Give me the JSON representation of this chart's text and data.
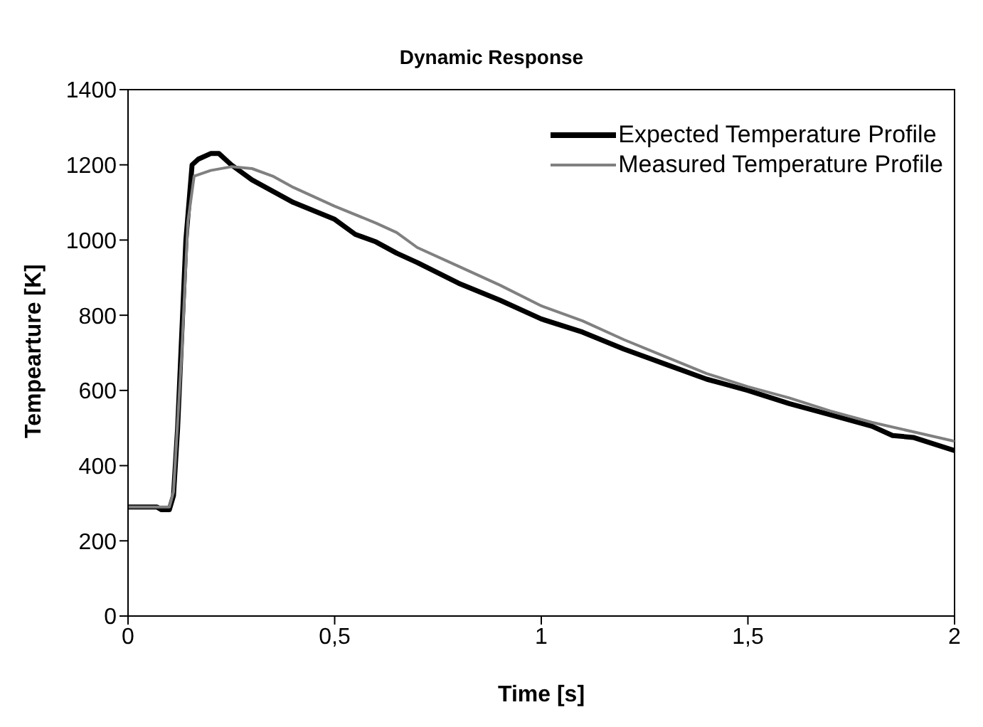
{
  "chart_data": {
    "type": "line",
    "title": "Dynamic Response",
    "xlabel": "Time [s]",
    "ylabel": "Tempearture [K]",
    "xlim": [
      0,
      2
    ],
    "xticks": [
      0,
      {
        "value": 0.5,
        "label": "0,5"
      },
      1,
      {
        "value": 1.5,
        "label": "1,5"
      },
      2
    ],
    "ylim": [
      0,
      1400
    ],
    "yticks": [
      0,
      200,
      400,
      600,
      800,
      1000,
      1200,
      1400
    ],
    "grid": false,
    "legend": "top right",
    "marker": "none",
    "line_style": "solid",
    "series": [
      {
        "name": "Expected Temperature Profile",
        "color": "#000000",
        "x": [
          0,
          0.07,
          0.08,
          0.1,
          0.11,
          0.12,
          0.14,
          0.155,
          0.17,
          0.2,
          0.22,
          0.25,
          0.3,
          0.4,
          0.5,
          0.55,
          0.6,
          0.65,
          0.7,
          0.8,
          0.9,
          1.0,
          1.1,
          1.2,
          1.3,
          1.4,
          1.5,
          1.6,
          1.7,
          1.8,
          1.85,
          1.9,
          2.0
        ],
        "values": [
          290,
          290,
          283,
          283,
          320,
          500,
          1000,
          1200,
          1215,
          1230,
          1230,
          1200,
          1160,
          1100,
          1055,
          1015,
          995,
          965,
          940,
          885,
          840,
          790,
          755,
          710,
          670,
          630,
          600,
          565,
          535,
          505,
          480,
          475,
          440
        ]
      },
      {
        "name": "Measured Temperature Profile",
        "color": "#808080",
        "x": [
          0,
          0.09,
          0.1,
          0.11,
          0.13,
          0.145,
          0.16,
          0.2,
          0.25,
          0.3,
          0.35,
          0.4,
          0.5,
          0.6,
          0.65,
          0.7,
          0.8,
          0.9,
          1.0,
          1.1,
          1.2,
          1.3,
          1.4,
          1.5,
          1.6,
          1.7,
          1.8,
          1.9,
          2.0
        ],
        "values": [
          290,
          290,
          290,
          330,
          700,
          1050,
          1170,
          1185,
          1195,
          1190,
          1170,
          1140,
          1090,
          1045,
          1020,
          980,
          930,
          880,
          825,
          785,
          735,
          690,
          645,
          610,
          580,
          545,
          515,
          490,
          465
        ]
      }
    ]
  }
}
